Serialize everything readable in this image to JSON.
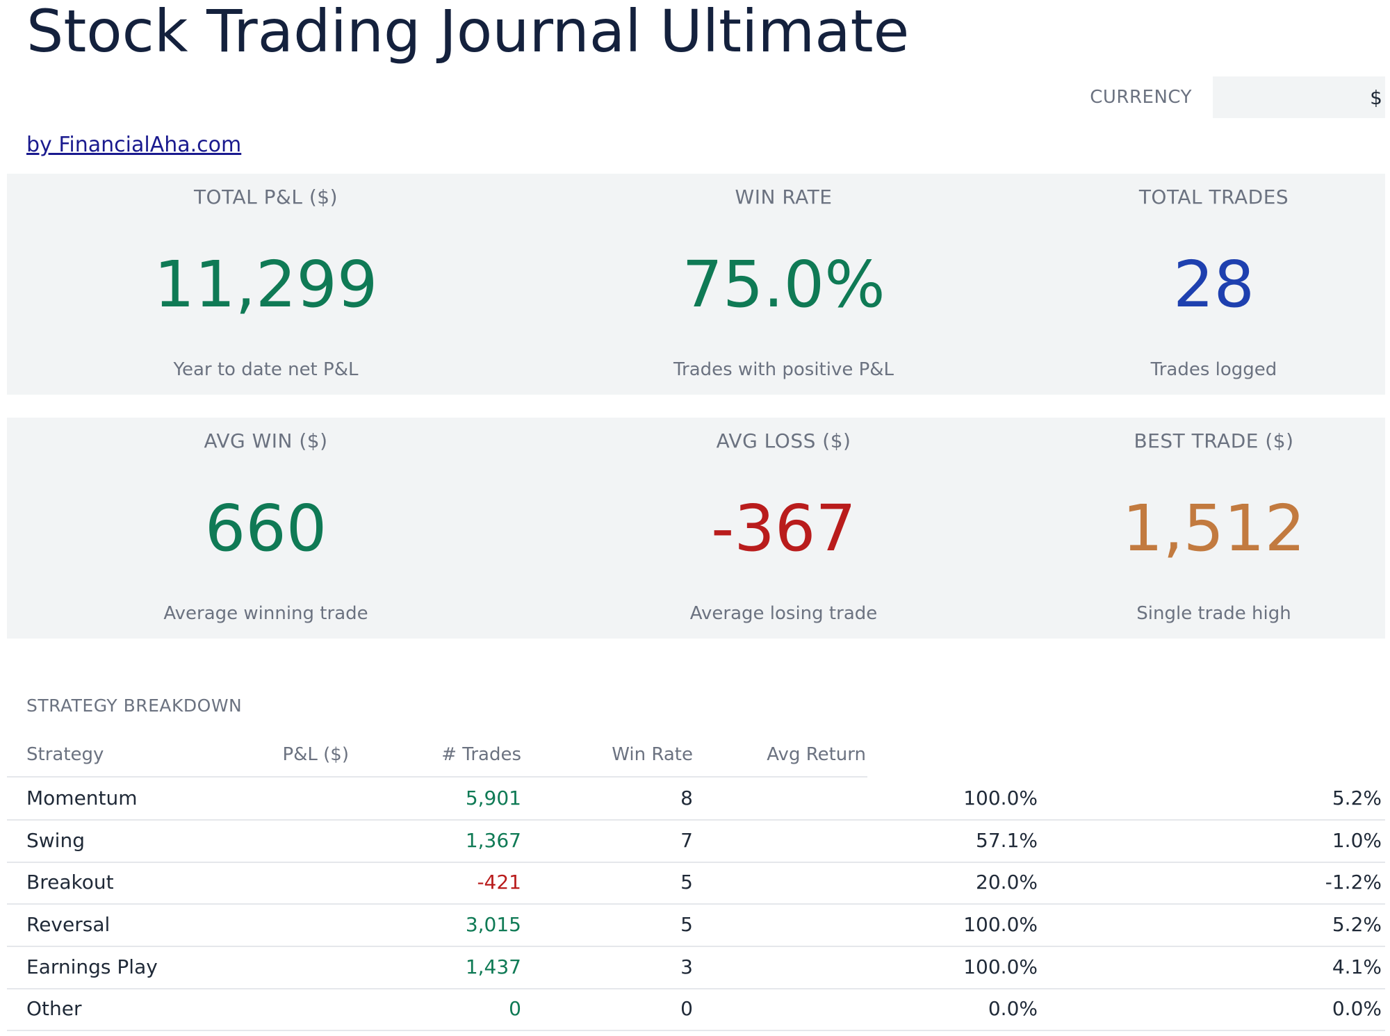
{
  "header": {
    "title": "Stock Trading Journal Ultimate",
    "currency_label": "CURRENCY",
    "currency_value": "$",
    "link_text": "by FinancialAha.com"
  },
  "colors": {
    "positive": "#0f7a55",
    "negative": "#b91c1c",
    "count": "#1e40af",
    "best": "#c27a3f"
  },
  "kpis": [
    {
      "label": "TOTAL P&L ($)",
      "value": "11,299",
      "sub": "Year to date net P&L",
      "tone": "positive"
    },
    {
      "label": "WIN RATE",
      "value": "75.0%",
      "sub": "Trades with positive P&L",
      "tone": "positive"
    },
    {
      "label": "TOTAL TRADES",
      "value": "28",
      "sub": "Trades logged",
      "tone": "count"
    },
    {
      "label": "AVG WIN ($)",
      "value": "660",
      "sub": "Average winning trade",
      "tone": "positive"
    },
    {
      "label": "AVG LOSS ($)",
      "value": "-367",
      "sub": "Average losing trade",
      "tone": "negative"
    },
    {
      "label": "BEST TRADE ($)",
      "value": "1,512",
      "sub": "Single trade high",
      "tone": "best"
    }
  ],
  "strategy": {
    "title": "STRATEGY BREAKDOWN",
    "columns": [
      "Strategy",
      "P&L ($)",
      "# Trades",
      "Win Rate",
      "Avg Return"
    ],
    "rows": [
      {
        "name": "Momentum",
        "pnl": "5,901",
        "trades": "8",
        "win_rate": "100.0%",
        "avg_return": "5.2%",
        "tone": "positive"
      },
      {
        "name": "Swing",
        "pnl": "1,367",
        "trades": "7",
        "win_rate": "57.1%",
        "avg_return": "1.0%",
        "tone": "positive"
      },
      {
        "name": "Breakout",
        "pnl": "-421",
        "trades": "5",
        "win_rate": "20.0%",
        "avg_return": "-1.2%",
        "tone": "negative"
      },
      {
        "name": "Reversal",
        "pnl": "3,015",
        "trades": "5",
        "win_rate": "100.0%",
        "avg_return": "5.2%",
        "tone": "positive"
      },
      {
        "name": "Earnings Play",
        "pnl": "1,437",
        "trades": "3",
        "win_rate": "100.0%",
        "avg_return": "4.1%",
        "tone": "positive"
      },
      {
        "name": "Other",
        "pnl": "0",
        "trades": "0",
        "win_rate": "0.0%",
        "avg_return": "0.0%",
        "tone": "positive"
      }
    ]
  }
}
